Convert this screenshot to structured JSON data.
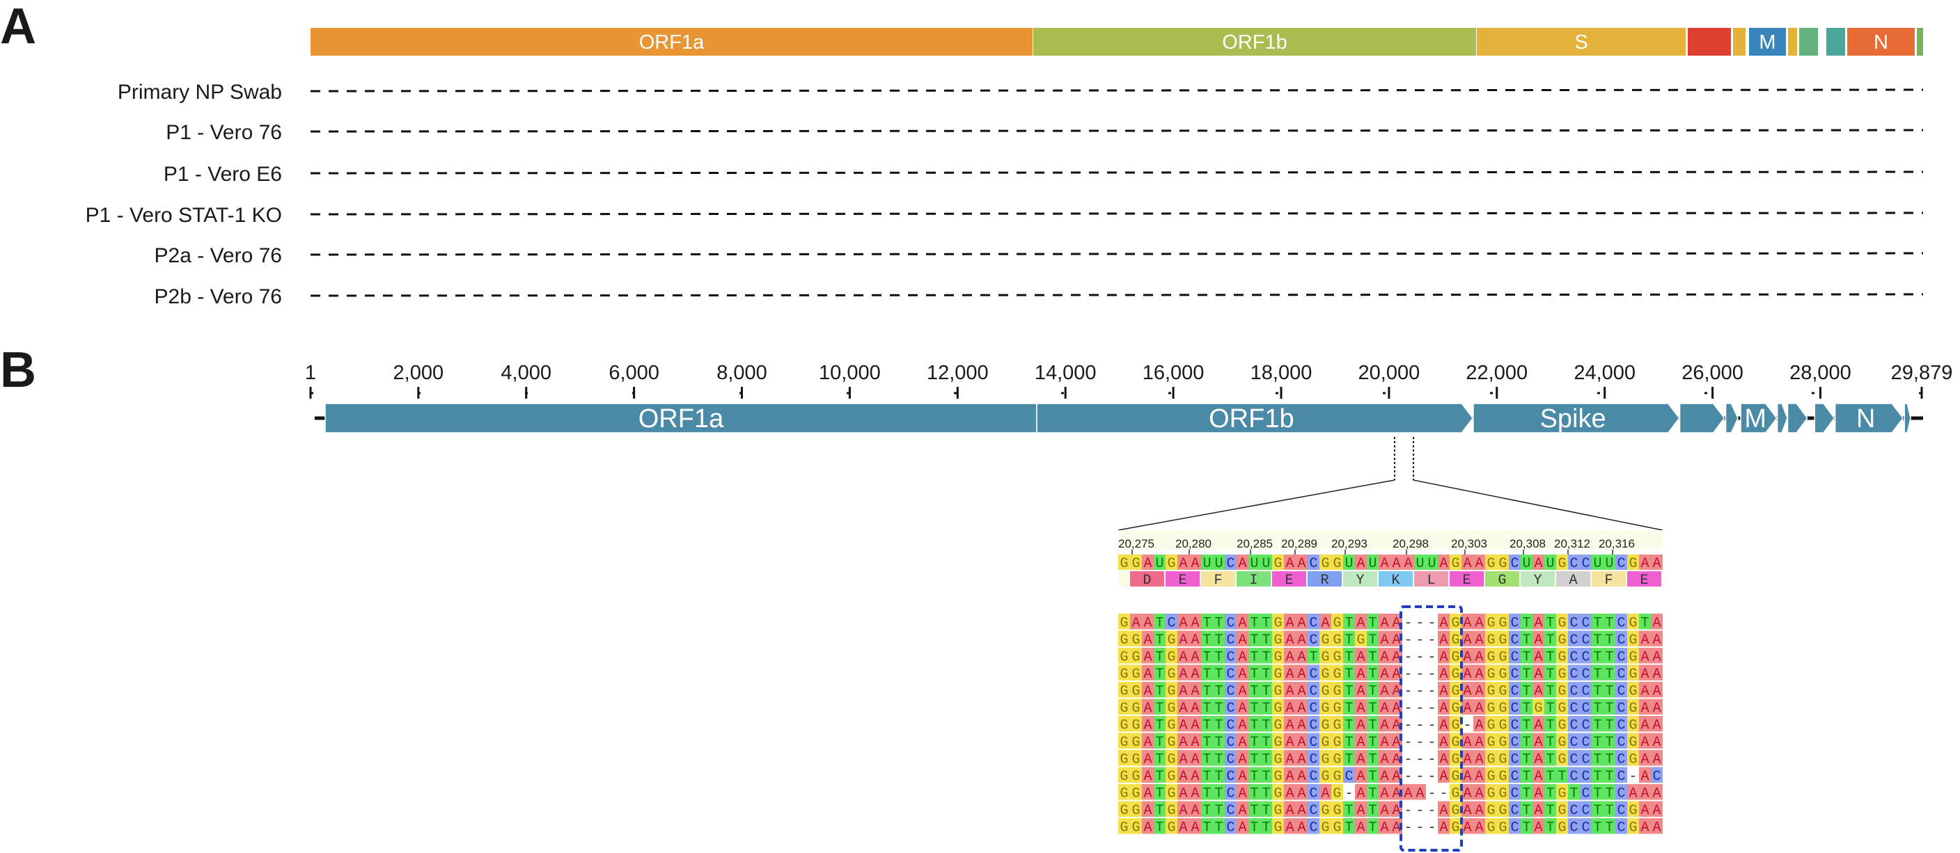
{
  "panels": {
    "a": "A",
    "b": "B"
  },
  "panel_a": {
    "segments": [
      {
        "label": "ORF1a",
        "color": "#e89534"
      },
      {
        "label": "ORF1b",
        "color": "#a8bc4f"
      },
      {
        "label": "S",
        "color": "#e2b23a"
      },
      {
        "label": "",
        "color": "#de3f2e"
      },
      {
        "label": "",
        "color": "#e2b23a"
      },
      {
        "label": "M",
        "color": "#3a84bc"
      },
      {
        "label": "",
        "color": "#e2b23a"
      },
      {
        "label": "",
        "color": "#64b07f"
      },
      {
        "label": "",
        "color": "#48a69a"
      },
      {
        "label": "N",
        "color": "#e66b35"
      },
      {
        "label": "",
        "color": "#74b45a"
      }
    ],
    "samples": [
      "Primary NP Swab",
      "P1 - Vero 76",
      "P1 - Vero E6",
      "P1 - Vero STAT-1 KO",
      "P2a - Vero 76",
      "P2b - Vero 76"
    ]
  },
  "panel_b": {
    "ruler_ticks": [
      "1",
      "2,000",
      "4,000",
      "6,000",
      "8,000",
      "10,000",
      "12,000",
      "14,000",
      "16,000",
      "18,000",
      "20,000",
      "22,000",
      "24,000",
      "26,000",
      "28,000",
      "29,879"
    ],
    "ruler_values": [
      1,
      2000,
      4000,
      6000,
      8000,
      10000,
      12000,
      14000,
      16000,
      18000,
      20000,
      22000,
      24000,
      26000,
      28000,
      29879
    ],
    "genome_length": 29879,
    "gene_color": "#4a8aa6",
    "genes": [
      {
        "label": "ORF1a",
        "start": 266,
        "end": 13468
      },
      {
        "label": "ORF1b",
        "start": 13468,
        "end": 21555
      },
      {
        "label": "Spike",
        "start": 21563,
        "end": 25384
      },
      {
        "label": "",
        "start": 25393,
        "end": 26220
      },
      {
        "label": "",
        "start": 26245,
        "end": 26472
      },
      {
        "label": "M",
        "start": 26523,
        "end": 27191
      },
      {
        "label": "",
        "start": 27202,
        "end": 27387
      },
      {
        "label": "",
        "start": 27394,
        "end": 27759
      },
      {
        "label": "",
        "start": 27894,
        "end": 28259
      },
      {
        "label": "N",
        "start": 28274,
        "end": 29533
      },
      {
        "label": "",
        "start": 29558,
        "end": 29674
      }
    ],
    "zoom_region": {
      "start": 20275,
      "end": 20322
    },
    "alignment": {
      "position_labels": [
        "20,275",
        "20,280",
        "20,285",
        "20,289",
        "20,293",
        "20,298",
        "20,303",
        "20,308",
        "20,312",
        "20,316"
      ],
      "reference": "GGAUGAAUUCAUUGAACGGUAUAAAUUAGAAGGCUAUGCCUUCGAA",
      "amino_acids": [
        "D",
        "E",
        "F",
        "I",
        "E",
        "R",
        "Y",
        "K",
        "L",
        "E",
        "G",
        "Y",
        "A",
        "F",
        "E"
      ],
      "reads": [
        "GAATCAATTCATTGAACAGTATAA---AGAAGGCTATGCCTTCGTA",
        "GGATGAATTCATTGAACGGTGTAA---AGAAGGCTATGCCTTCGAA",
        "GGATGAATTCATTGAATGGTATAA---AGAAGGCTATGCCTTCGAA",
        "GGATGAATTCATTGAACGGTATAA---AGAAGGCTATGCCTTCGAA",
        "GGATGAATTCATTGAACGGTATAA---AGAAGGCTATGCCTTCGAA",
        "GGATGAATTCATTGAACGGTATAA---AGAAGGCTGTGCCTTCGAA",
        "GGATGAATTCATTGAACGGTATAA---AG-AGGCTATGCCTTCGAA",
        "GGATGAATTCATTGAACGGTATAA---AGAAGGCTATGCCTTCGAA",
        "GGATGAATTCATTGAACGGTATAA---AGAAGGCTATGCCTTCGAA",
        "GGATGAATTCATTGAACGGCATAA---AGAAGGCTATTCCTTC-AC",
        "GGATGAATTCATTGAACAG-ATAAAA--GAAGGCTATGTCTTCAAA",
        "GGATGAATTCATTGAACGGTATAA---AGAAGGCTATGCCTTCGAA",
        "GGATGAATTCATTGAACGGTATAA---AGAAGGCTATGCCTTCGAA"
      ],
      "highlight_color": "#1f3fbf"
    }
  },
  "colors": {
    "A": "#f08a8a",
    "G": "#f4e04a",
    "C": "#8fa3f0",
    "T": "#5fe55f",
    "U": "#5fe55f",
    "aa": {
      "D": "#f06a8a",
      "E": "#f060d0",
      "F": "#f4e4a0",
      "I": "#7de07d",
      "R": "#7fa0f0",
      "Y": "#bfe8bf",
      "K": "#7fc8f0",
      "L": "#f09ab0",
      "G": "#a0e070",
      "A": "#d0d0d0"
    }
  }
}
